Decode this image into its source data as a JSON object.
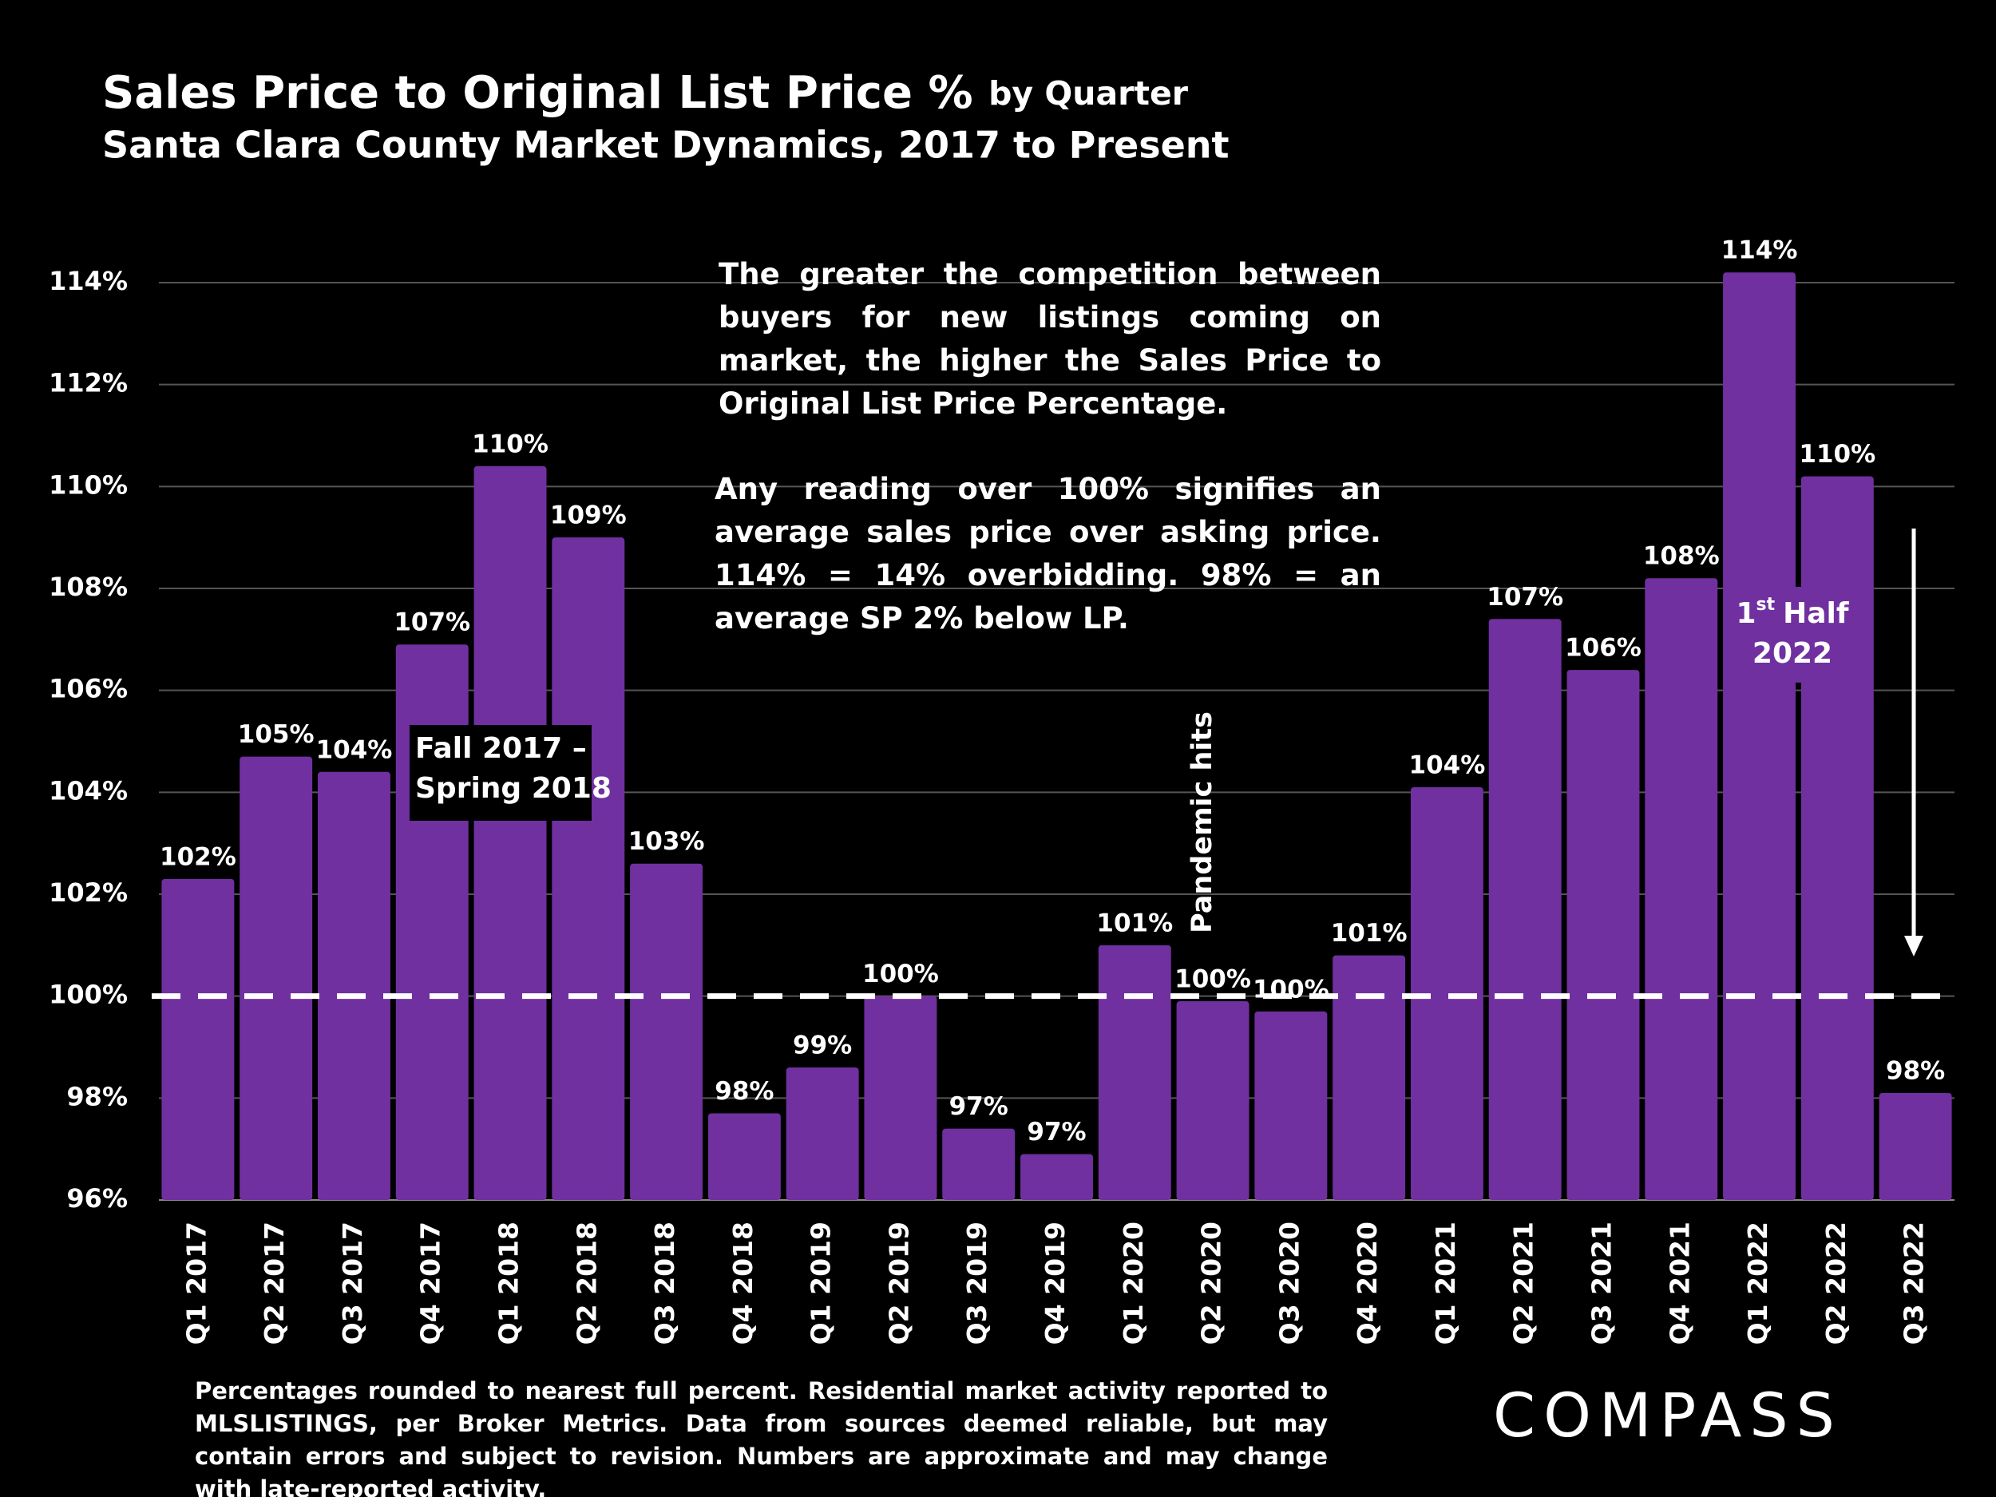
{
  "chart_data": {
    "type": "bar",
    "title": "Sales Price to Original List Price %",
    "title_suffix": "by Quarter",
    "subtitle": "Santa Clara County Market Dynamics, 2017 to Present",
    "categories": [
      "Q1 2017",
      "Q2 2017",
      "Q3 2017",
      "Q4 2017",
      "Q1 2018",
      "Q2 2018",
      "Q3 2018",
      "Q4 2018",
      "Q1 2019",
      "Q2 2019",
      "Q3 2019",
      "Q4 2019",
      "Q1 2020",
      "Q2 2020",
      "Q3 2020",
      "Q4 2020",
      "Q1 2021",
      "Q2 2021",
      "Q3 2021",
      "Q4 2021",
      "Q1 2022",
      "Q2 2022",
      "Q3 2022"
    ],
    "values": [
      102.3,
      104.7,
      104.4,
      106.9,
      110.4,
      109.0,
      102.6,
      97.7,
      98.6,
      100.0,
      97.4,
      96.9,
      101.0,
      99.9,
      99.7,
      100.8,
      104.1,
      107.4,
      106.4,
      108.2,
      114.2,
      110.2,
      98.1
    ],
    "value_labels": [
      "102%",
      "105%",
      "104%",
      "107%",
      "110%",
      "109%",
      "103%",
      "98%",
      "99%",
      "100%",
      "97%",
      "97%",
      "101%",
      "100%",
      "100%",
      "101%",
      "104%",
      "107%",
      "106%",
      "108%",
      "114%",
      "110%",
      "98%"
    ],
    "color": "#7030a0",
    "ylim": [
      96,
      114
    ],
    "yticks": [
      {
        "value": 96,
        "label": "96%"
      },
      {
        "value": 98,
        "label": "98%"
      },
      {
        "value": 100,
        "label": "100%"
      },
      {
        "value": 102,
        "label": "102%"
      },
      {
        "value": 104,
        "label": "104%"
      },
      {
        "value": 106,
        "label": "106%"
      },
      {
        "value": 108,
        "label": "108%"
      },
      {
        "value": 110,
        "label": "110%"
      },
      {
        "value": 112,
        "label": "112%"
      },
      {
        "value": 114,
        "label": "114%"
      }
    ],
    "grid": true,
    "reference_line": 100,
    "annotation_text": [
      "The greater the competition between buyers for new listings coming on market, the higher the Sales Price to Original List Price Percentage.",
      "Any reading over 100% signifies an average sales price over asking price. 114% = 14% overbidding.  98% = an average SP 2% below LP."
    ],
    "annotation_fall": [
      "Fall 2017 –",
      "Spring 2018"
    ],
    "annotation_pandemic": "Pandemic hits",
    "annotation_half": {
      "number": "1",
      "suffix": "st",
      "rest": "Half",
      "year": "2022"
    },
    "footnote": "Percentages rounded to nearest full percent. Residential market activity reported to MLSLISTINGS, per Broker Metrics. Data from sources deemed reliable, but may contain errors and subject to revision. Numbers are approximate and may change with late-reported activity.",
    "logo": "COMPASS"
  }
}
